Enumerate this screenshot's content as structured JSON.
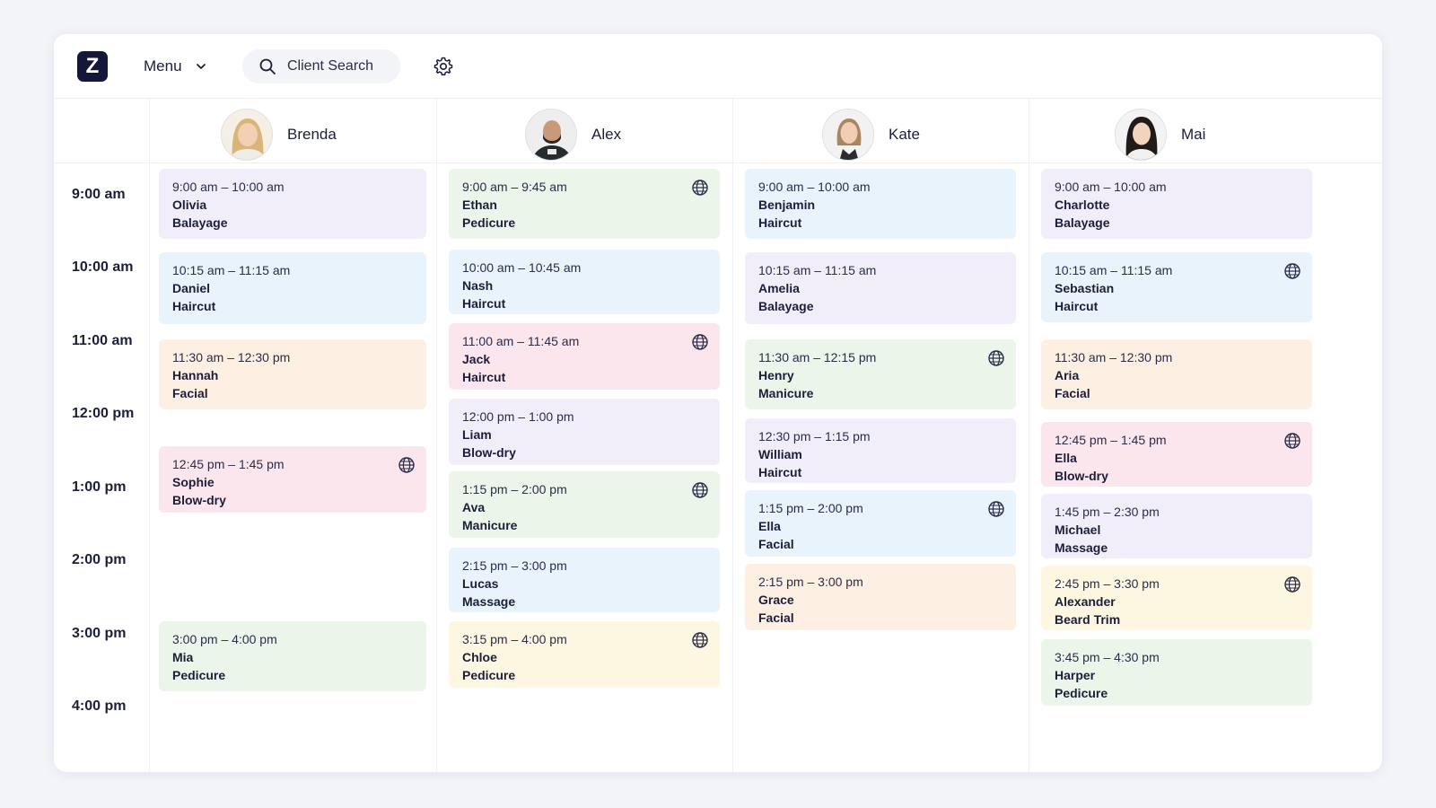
{
  "topbar": {
    "logo": "Z",
    "menu_label": "Menu",
    "search_label": "Client Search"
  },
  "staff": [
    {
      "name": "Brenda"
    },
    {
      "name": "Alex"
    },
    {
      "name": "Kate"
    },
    {
      "name": "Mai"
    }
  ],
  "times": [
    "9:00 am",
    "10:00 am",
    "11:00 am",
    "12:00 pm",
    "1:00 pm",
    "2:00 pm",
    "3:00 pm",
    "4:00 pm"
  ],
  "appointments": {
    "brenda": [
      {
        "time": "9:00 am – 10:00 am",
        "client": "Olivia",
        "service": "Balayage",
        "color": "purple",
        "online": false
      },
      {
        "time": "10:15 am – 11:15 am",
        "client": "Daniel",
        "service": "Haircut",
        "color": "blue",
        "online": false
      },
      {
        "time": "11:30 am – 12:30 pm",
        "client": "Hannah",
        "service": "Facial",
        "color": "orange",
        "online": false
      },
      {
        "time": "12:45 pm – 1:45 pm",
        "client": "Sophie",
        "service": "Blow-dry",
        "color": "pink",
        "online": true
      },
      {
        "time": "3:00 pm – 4:00 pm",
        "client": "Mia",
        "service": "Pedicure",
        "color": "green",
        "online": false
      }
    ],
    "alex": [
      {
        "time": "9:00 am – 9:45 am",
        "client": "Ethan",
        "service": "Pedicure",
        "color": "green",
        "online": true
      },
      {
        "time": "10:00 am – 10:45 am",
        "client": "Nash",
        "service": "Haircut",
        "color": "blue",
        "online": false
      },
      {
        "time": "11:00 am – 11:45 am",
        "client": "Jack",
        "service": "Haircut",
        "color": "pink",
        "online": true
      },
      {
        "time": "12:00 pm – 1:00 pm",
        "client": "Liam",
        "service": "Blow-dry",
        "color": "purple",
        "online": false
      },
      {
        "time": "1:15 pm – 2:00 pm",
        "client": "Ava",
        "service": "Manicure",
        "color": "green",
        "online": true
      },
      {
        "time": "2:15 pm – 3:00 pm",
        "client": "Lucas",
        "service": "Massage",
        "color": "blue",
        "online": false
      },
      {
        "time": "3:15 pm – 4:00 pm",
        "client": "Chloe",
        "service": "Pedicure",
        "color": "yellow",
        "online": true
      }
    ],
    "kate": [
      {
        "time": "9:00 am – 10:00 am",
        "client": "Benjamin",
        "service": "Haircut",
        "color": "blue",
        "online": false
      },
      {
        "time": "10:15 am – 11:15 am",
        "client": "Amelia",
        "service": "Balayage",
        "color": "purple",
        "online": false
      },
      {
        "time": "11:30 am – 12:15 pm",
        "client": "Henry",
        "service": "Manicure",
        "color": "green",
        "online": true
      },
      {
        "time": "12:30 pm – 1:15 pm",
        "client": "William",
        "service": "Haircut",
        "color": "purple",
        "online": false
      },
      {
        "time": "1:15 pm – 2:00 pm",
        "client": "Ella",
        "service": "Facial",
        "color": "blue",
        "online": true
      },
      {
        "time": "2:15 pm – 3:00 pm",
        "client": "Grace",
        "service": "Facial",
        "color": "orange",
        "online": false
      }
    ],
    "mai": [
      {
        "time": "9:00 am – 10:00 am",
        "client": "Charlotte",
        "service": "Balayage",
        "color": "purple",
        "online": false
      },
      {
        "time": "10:15 am – 11:15 am",
        "client": "Sebastian",
        "service": "Haircut",
        "color": "blue",
        "online": true
      },
      {
        "time": "11:30 am – 12:30 pm",
        "client": "Aria",
        "service": "Facial",
        "color": "orange",
        "online": false
      },
      {
        "time": "12:45 pm – 1:45 pm",
        "client": "Ella",
        "service": "Blow-dry",
        "color": "pink",
        "online": true
      },
      {
        "time": "1:45 pm – 2:30 pm",
        "client": "Michael",
        "service": "Massage",
        "color": "purple",
        "online": false
      },
      {
        "time": "2:45 pm – 3:30 pm",
        "client": "Alexander",
        "service": "Beard Trim",
        "color": "yellow",
        "online": true
      },
      {
        "time": "3:45 pm – 4:30 pm",
        "client": "Harper",
        "service": "Pedicure",
        "color": "green",
        "online": false
      }
    ]
  },
  "colors": {
    "purple": "#f1eefa",
    "blue": "#e8f3fc",
    "orange": "#fdf0e2",
    "pink": "#fbe6ee",
    "green": "#ecf5ea",
    "yellow": "#fdf7e1",
    "brand": "#14163a"
  },
  "icons": {
    "logo": "logo-icon",
    "menu": "chevron-down-icon",
    "search": "search-icon",
    "settings": "gear-icon",
    "online": "globe-icon"
  }
}
